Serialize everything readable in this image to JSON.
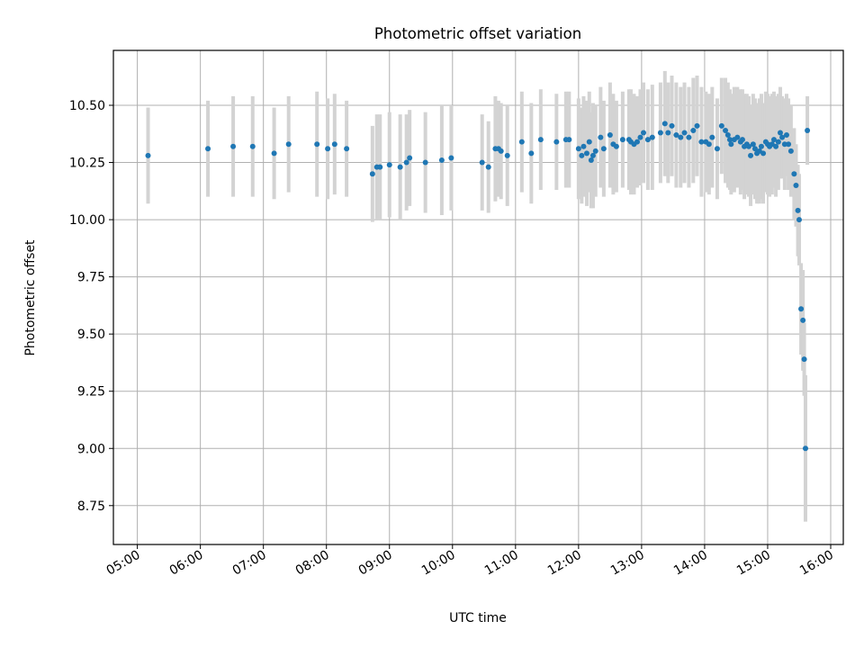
{
  "chart_data": {
    "type": "scatter",
    "title": "Photometric offset variation",
    "xlabel": "UTC time",
    "ylabel": "Photometric offset",
    "x_unit": "hours UTC",
    "xlim": [
      4.62,
      16.2
    ],
    "ylim": [
      8.58,
      10.74
    ],
    "x_ticks": [
      5,
      6,
      7,
      8,
      9,
      10,
      11,
      12,
      13,
      14,
      15,
      16
    ],
    "x_tick_labels": [
      "05:00",
      "06:00",
      "07:00",
      "08:00",
      "09:00",
      "10:00",
      "11:00",
      "12:00",
      "13:00",
      "14:00",
      "15:00",
      "16:00"
    ],
    "y_ticks": [
      8.75,
      9.0,
      9.25,
      9.5,
      9.75,
      10.0,
      10.25,
      10.5
    ],
    "y_tick_labels": [
      "8.75",
      "9.00",
      "9.25",
      "9.50",
      "9.75",
      "10.00",
      "10.25",
      "10.50"
    ],
    "grid": true,
    "colors": {
      "points": "#1f77b4",
      "errorbars": "#d3d3d3",
      "grid": "#b0b0b0"
    },
    "series": [
      {
        "x": [
          5.17,
          6.12,
          6.52,
          6.83,
          7.17,
          7.4,
          7.85,
          8.02,
          8.13,
          8.32,
          8.73,
          8.8,
          8.85,
          9.0,
          9.17,
          9.27,
          9.32,
          9.57,
          9.83,
          9.98,
          10.47,
          10.57,
          10.68,
          10.73,
          10.77,
          10.87,
          11.1,
          11.25,
          11.4,
          11.65,
          11.8,
          11.85,
          12.0,
          12.05,
          12.08,
          12.13,
          12.17,
          12.2,
          12.23,
          12.27,
          12.35,
          12.4,
          12.5,
          12.55,
          12.6,
          12.7,
          12.8,
          12.83,
          12.88,
          12.93,
          12.98,
          13.03,
          13.1,
          13.17,
          13.3,
          13.37,
          13.42,
          13.48,
          13.55,
          13.62,
          13.68,
          13.75,
          13.82,
          13.88,
          13.95,
          14.02,
          14.07,
          14.12,
          14.2,
          14.27,
          14.33,
          14.37,
          14.4,
          14.42,
          14.47,
          14.52,
          14.57,
          14.6,
          14.63,
          14.67,
          14.7,
          14.73,
          14.77,
          14.8,
          14.83,
          14.87,
          14.9,
          14.93,
          14.97,
          15.0,
          15.03,
          15.07,
          15.1,
          15.13,
          15.17,
          15.2,
          15.23,
          15.27,
          15.3,
          15.33,
          15.37,
          15.42,
          15.45,
          15.48,
          15.5,
          15.53,
          15.56,
          15.58,
          15.6,
          15.63
        ],
        "y": [
          10.28,
          10.31,
          10.32,
          10.32,
          10.29,
          10.33,
          10.33,
          10.31,
          10.33,
          10.31,
          10.2,
          10.23,
          10.23,
          10.24,
          10.23,
          10.25,
          10.27,
          10.25,
          10.26,
          10.27,
          10.25,
          10.23,
          10.31,
          10.31,
          10.3,
          10.28,
          10.34,
          10.29,
          10.35,
          10.34,
          10.35,
          10.35,
          10.31,
          10.28,
          10.32,
          10.29,
          10.34,
          10.26,
          10.28,
          10.3,
          10.36,
          10.31,
          10.37,
          10.33,
          10.32,
          10.35,
          10.35,
          10.34,
          10.33,
          10.34,
          10.36,
          10.38,
          10.35,
          10.36,
          10.38,
          10.42,
          10.38,
          10.41,
          10.37,
          10.36,
          10.38,
          10.36,
          10.39,
          10.41,
          10.34,
          10.34,
          10.33,
          10.36,
          10.31,
          10.41,
          10.39,
          10.37,
          10.35,
          10.33,
          10.35,
          10.36,
          10.34,
          10.35,
          10.32,
          10.33,
          10.32,
          10.28,
          10.33,
          10.31,
          10.29,
          10.3,
          10.32,
          10.29,
          10.34,
          10.33,
          10.32,
          10.33,
          10.35,
          10.32,
          10.34,
          10.38,
          10.36,
          10.33,
          10.37,
          10.33,
          10.3,
          10.2,
          10.15,
          10.04,
          10.0,
          9.61,
          9.56,
          9.39,
          9.0,
          10.39
        ],
        "yerr": [
          0.21,
          0.21,
          0.22,
          0.22,
          0.2,
          0.21,
          0.23,
          0.22,
          0.22,
          0.21,
          0.21,
          0.23,
          0.23,
          0.23,
          0.23,
          0.21,
          0.21,
          0.22,
          0.24,
          0.23,
          0.21,
          0.2,
          0.23,
          0.21,
          0.21,
          0.22,
          0.22,
          0.22,
          0.22,
          0.21,
          0.21,
          0.21,
          0.22,
          0.21,
          0.22,
          0.23,
          0.22,
          0.21,
          0.23,
          0.2,
          0.22,
          0.21,
          0.23,
          0.22,
          0.2,
          0.21,
          0.22,
          0.23,
          0.22,
          0.2,
          0.21,
          0.22,
          0.22,
          0.23,
          0.22,
          0.23,
          0.22,
          0.22,
          0.23,
          0.22,
          0.22,
          0.22,
          0.23,
          0.22,
          0.24,
          0.22,
          0.22,
          0.22,
          0.22,
          0.21,
          0.23,
          0.23,
          0.22,
          0.22,
          0.23,
          0.22,
          0.23,
          0.22,
          0.23,
          0.22,
          0.22,
          0.22,
          0.22,
          0.22,
          0.22,
          0.23,
          0.23,
          0.22,
          0.22,
          0.22,
          0.22,
          0.22,
          0.21,
          0.22,
          0.21,
          0.2,
          0.18,
          0.2,
          0.18,
          0.2,
          0.2,
          0.2,
          0.18,
          0.2,
          0.2,
          0.2,
          0.22,
          0.16,
          0.32,
          0.15
        ]
      }
    ]
  }
}
